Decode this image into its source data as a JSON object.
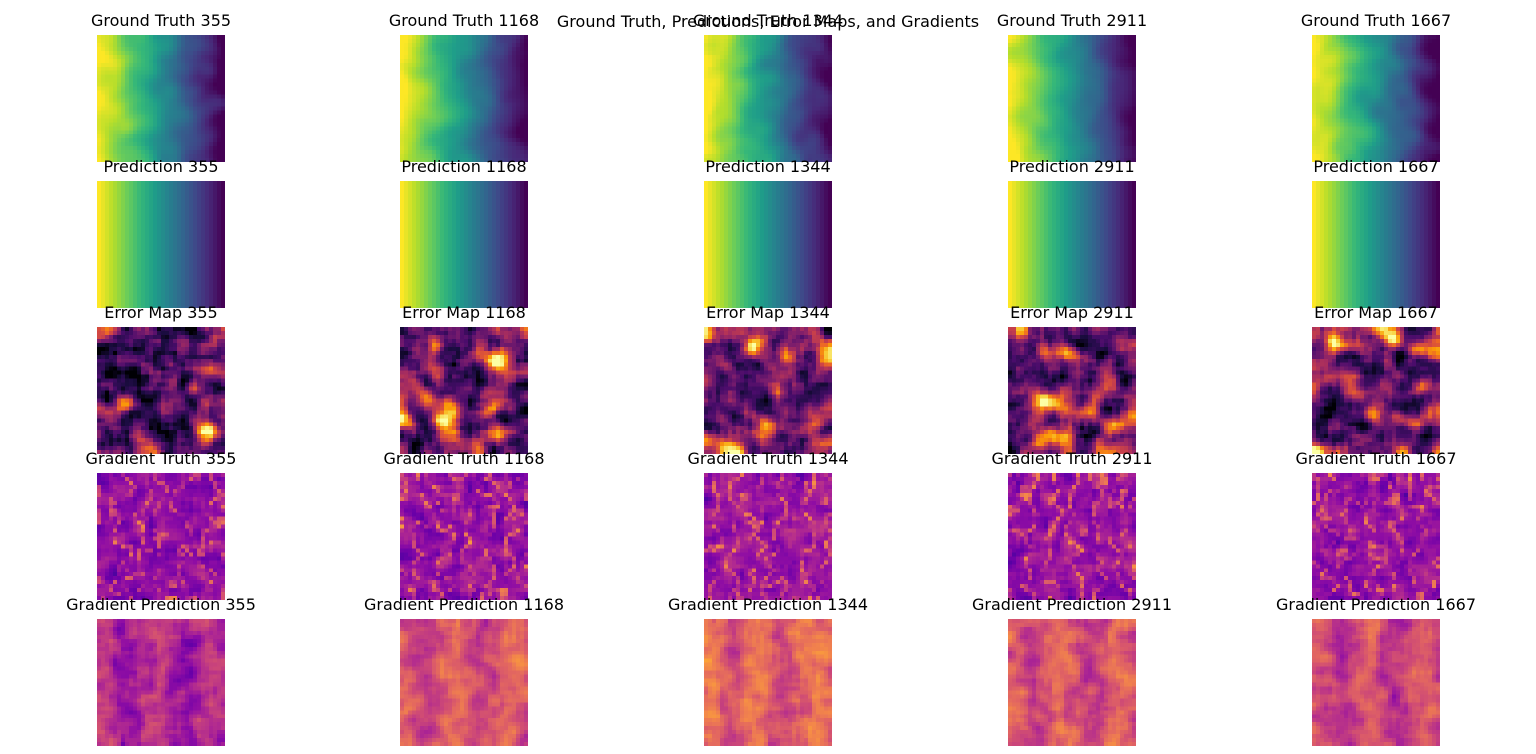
{
  "figure": {
    "suptitle": "Ground Truth, Predictions, Error Maps, and Gradients"
  },
  "chart_data": {
    "type": "heatmap",
    "sample_ids": [
      "355",
      "1168",
      "1344",
      "2911",
      "1667"
    ],
    "rows": [
      {
        "key": "ground_truth",
        "colormap": "viridis",
        "titles": [
          "Ground Truth 355",
          "Ground Truth 1168",
          "Ground Truth 1344",
          "Ground Truth 2911",
          "Ground Truth 1667"
        ]
      },
      {
        "key": "prediction",
        "colormap": "viridis",
        "titles": [
          "Prediction 355",
          "Prediction 1168",
          "Prediction 1344",
          "Prediction 2911",
          "Prediction 1667"
        ]
      },
      {
        "key": "error_map",
        "colormap": "inferno",
        "titles": [
          "Error Map 355",
          "Error Map 1168",
          "Error Map 1344",
          "Error Map 2911",
          "Error Map 1667"
        ]
      },
      {
        "key": "gradient_truth",
        "colormap": "plasma",
        "titles": [
          "Gradient Truth 355",
          "Gradient Truth 1168",
          "Gradient Truth 1344",
          "Gradient Truth 2911",
          "Gradient Truth 1667"
        ]
      },
      {
        "key": "gradient_prediction",
        "colormap": "plasma",
        "titles": [
          "Gradient Prediction 355",
          "Gradient Prediction 1168",
          "Gradient Prediction 1344",
          "Gradient Prediction 2911",
          "Gradient Prediction 1667"
        ]
      }
    ],
    "axes": "off",
    "colorbar": false
  }
}
